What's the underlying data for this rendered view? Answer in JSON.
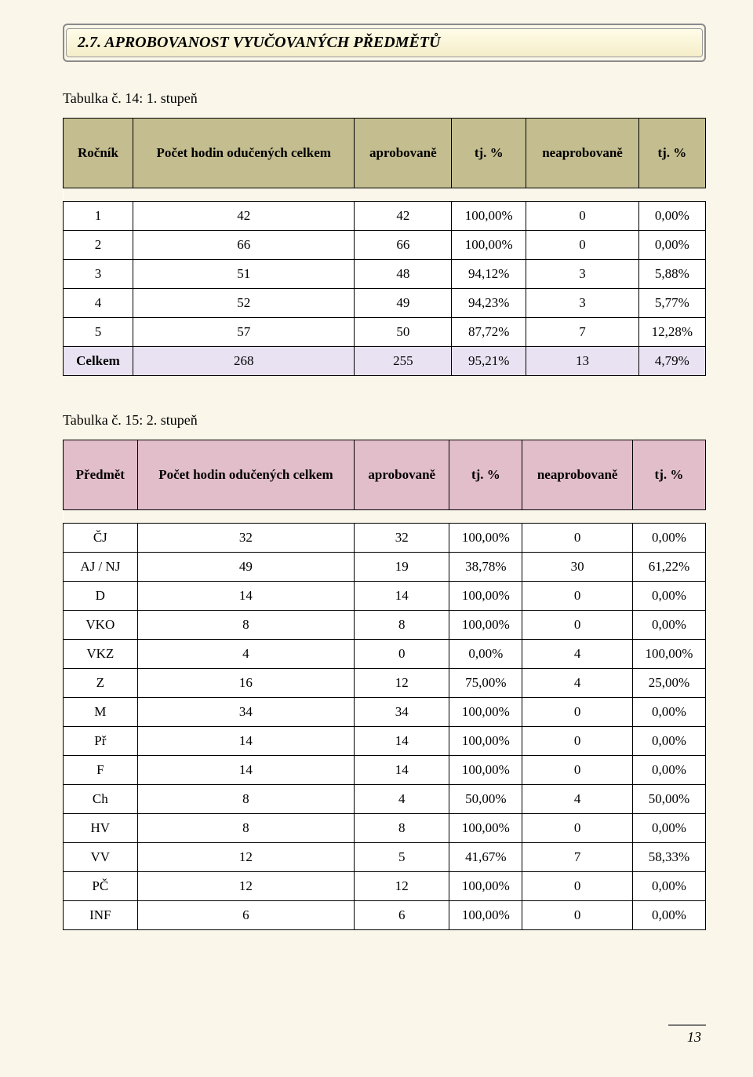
{
  "section_title": "2.7.    APROBOVANOST VYUČOVANÝCH PŘEDMĚTŮ",
  "table1": {
    "caption": "Tabulka č. 14: 1. stupeň",
    "headers": {
      "c0": "Ročník",
      "c1": "Počet hodin odučených celkem",
      "c2": "aprobovaně",
      "c3": "tj. %",
      "c4": "neaprobovaně",
      "c5": "tj. %"
    },
    "rows": [
      {
        "c0": "1",
        "c1": "42",
        "c2": "42",
        "c3": "100,00%",
        "c4": "0",
        "c5": "0,00%"
      },
      {
        "c0": "2",
        "c1": "66",
        "c2": "66",
        "c3": "100,00%",
        "c4": "0",
        "c5": "0,00%"
      },
      {
        "c0": "3",
        "c1": "51",
        "c2": "48",
        "c3": "94,12%",
        "c4": "3",
        "c5": "5,88%"
      },
      {
        "c0": "4",
        "c1": "52",
        "c2": "49",
        "c3": "94,23%",
        "c4": "3",
        "c5": "5,77%"
      },
      {
        "c0": "5",
        "c1": "57",
        "c2": "50",
        "c3": "87,72%",
        "c4": "7",
        "c5": "12,28%"
      }
    ],
    "total": {
      "c0": "Celkem",
      "c1": "268",
      "c2": "255",
      "c3": "95,21%",
      "c4": "13",
      "c5": "4,79%"
    }
  },
  "table2": {
    "caption": "Tabulka č. 15: 2. stupeň",
    "headers": {
      "c0": "Předmět",
      "c1": "Počet hodin odučených celkem",
      "c2": "aprobovaně",
      "c3": "tj. %",
      "c4": "neaprobovaně",
      "c5": "tj. %"
    },
    "rows": [
      {
        "c0": "ČJ",
        "c1": "32",
        "c2": "32",
        "c3": "100,00%",
        "c4": "0",
        "c5": "0,00%"
      },
      {
        "c0": "AJ / NJ",
        "c1": "49",
        "c2": "19",
        "c3": "38,78%",
        "c4": "30",
        "c5": "61,22%"
      },
      {
        "c0": "D",
        "c1": "14",
        "c2": "14",
        "c3": "100,00%",
        "c4": "0",
        "c5": "0,00%"
      },
      {
        "c0": "VKO",
        "c1": "8",
        "c2": "8",
        "c3": "100,00%",
        "c4": "0",
        "c5": "0,00%"
      },
      {
        "c0": "VKZ",
        "c1": "4",
        "c2": "0",
        "c3": "0,00%",
        "c4": "4",
        "c5": "100,00%"
      },
      {
        "c0": "Z",
        "c1": "16",
        "c2": "12",
        "c3": "75,00%",
        "c4": "4",
        "c5": "25,00%"
      },
      {
        "c0": "M",
        "c1": "34",
        "c2": "34",
        "c3": "100,00%",
        "c4": "0",
        "c5": "0,00%"
      },
      {
        "c0": "Př",
        "c1": "14",
        "c2": "14",
        "c3": "100,00%",
        "c4": "0",
        "c5": "0,00%"
      },
      {
        "c0": "F",
        "c1": "14",
        "c2": "14",
        "c3": "100,00%",
        "c4": "0",
        "c5": "0,00%"
      },
      {
        "c0": "Ch",
        "c1": "8",
        "c2": "4",
        "c3": "50,00%",
        "c4": "4",
        "c5": "50,00%"
      },
      {
        "c0": "HV",
        "c1": "8",
        "c2": "8",
        "c3": "100,00%",
        "c4": "0",
        "c5": "0,00%"
      },
      {
        "c0": "VV",
        "c1": "12",
        "c2": "5",
        "c3": "41,67%",
        "c4": "7",
        "c5": "58,33%"
      },
      {
        "c0": "PČ",
        "c1": "12",
        "c2": "12",
        "c3": "100,00%",
        "c4": "0",
        "c5": "0,00%"
      },
      {
        "c0": "INF",
        "c1": "6",
        "c2": "6",
        "c3": "100,00%",
        "c4": "0",
        "c5": "0,00%"
      }
    ]
  },
  "page_number": "13"
}
